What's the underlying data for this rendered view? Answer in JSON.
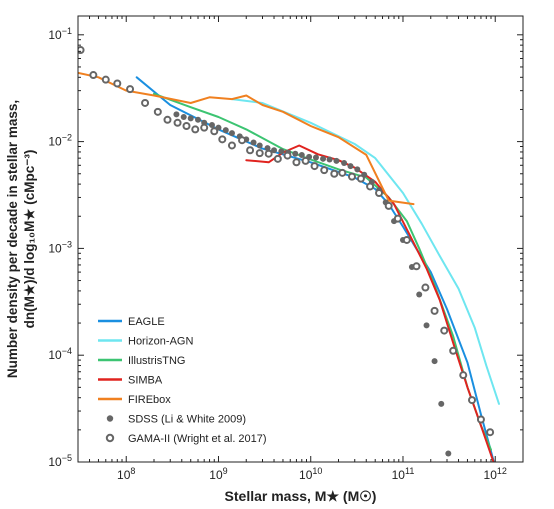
{
  "chart_data": {
    "type": "line",
    "xlabel": "Stellar mass, M★ (M☉)",
    "ylabel_line1": "Number density per decade in stellar mass,",
    "ylabel_line2": "dn(M★)/d log₁₀M★ (cMpc⁻³)",
    "xscale": "log",
    "yscale": "log",
    "xlim": [
      30000000.0,
      2000000000000.0
    ],
    "ylim": [
      1e-05,
      0.15
    ],
    "x_ticks": [
      {
        "value": 100000000.0,
        "base": "10",
        "exp": "8"
      },
      {
        "value": 1000000000.0,
        "base": "10",
        "exp": "9"
      },
      {
        "value": 10000000000.0,
        "base": "10",
        "exp": "10"
      },
      {
        "value": 100000000000.0,
        "base": "10",
        "exp": "11"
      },
      {
        "value": 1000000000000.0,
        "base": "10",
        "exp": "12"
      }
    ],
    "y_ticks": [
      {
        "value": 1e-05,
        "base": "10",
        "exp": "−5"
      },
      {
        "value": 0.0001,
        "base": "10",
        "exp": "−4"
      },
      {
        "value": 0.001,
        "base": "10",
        "exp": "−3"
      },
      {
        "value": 0.01,
        "base": "10",
        "exp": "−2"
      },
      {
        "value": 0.1,
        "base": "10",
        "exp": "−1"
      }
    ],
    "grid": false,
    "legend_position": "bottom-left",
    "series": [
      {
        "name": "EAGLE",
        "kind": "line",
        "color": "#1a8fe0",
        "x": [
          130000000.0,
          300000000.0,
          1000000000.0,
          3000000000.0,
          10000000000.0,
          30000000000.0,
          50000000000.0,
          70000000000.0,
          100000000000.0,
          150000000000.0,
          200000000000.0,
          300000000000.0,
          500000000000.0,
          700000000000.0,
          1000000000000.0
        ],
        "y": [
          0.04,
          0.022,
          0.013,
          0.0086,
          0.0064,
          0.0046,
          0.0036,
          0.0026,
          0.0016,
          0.0009,
          0.0006,
          0.00027,
          8.5e-05,
          2.8e-05,
          9e-06
        ]
      },
      {
        "name": "Horizon-AGN",
        "kind": "line",
        "color": "#6ee6f0",
        "x": [
          1400000000.0,
          3000000000.0,
          10000000000.0,
          30000000000.0,
          50000000000.0,
          100000000000.0,
          160000000000.0,
          250000000000.0,
          400000000000.0,
          600000000000.0,
          800000000000.0,
          1100000000000.0
        ],
        "y": [
          0.025,
          0.023,
          0.015,
          0.0095,
          0.007,
          0.0033,
          0.0017,
          0.00085,
          0.00042,
          0.00018,
          8e-05,
          3.5e-05
        ]
      },
      {
        "name": "IllustrisTNG",
        "kind": "line",
        "color": "#3cc472",
        "x": [
          200000000.0,
          500000000.0,
          1000000000.0,
          2000000000.0,
          5000000000.0,
          10000000000.0,
          20000000000.0,
          40000000000.0,
          70000000000.0,
          110000000000.0,
          150000000000.0,
          220000000000.0,
          350000000000.0,
          500000000000.0,
          700000000000.0,
          900000000000.0
        ],
        "y": [
          0.028,
          0.021,
          0.017,
          0.013,
          0.0085,
          0.0068,
          0.0055,
          0.0046,
          0.003,
          0.0018,
          0.001,
          0.00045,
          0.00015,
          5e-05,
          2.2e-05,
          1.3e-05
        ]
      },
      {
        "name": "SIMBA",
        "kind": "line",
        "color": "#e0231f",
        "x": [
          2000000000.0,
          3500000000.0,
          5000000000.0,
          7500000000.0,
          12000000000.0,
          20000000000.0,
          30000000000.0,
          50000000000.0,
          80000000000.0,
          120000000000.0,
          180000000000.0,
          250000000000.0,
          350000000000.0,
          500000000000.0,
          700000000000.0,
          1000000000000.0
        ],
        "y": [
          0.0067,
          0.0064,
          0.0079,
          0.0092,
          0.0076,
          0.0067,
          0.0057,
          0.0042,
          0.0026,
          0.0013,
          0.00065,
          0.00033,
          0.00013,
          5e-05,
          2.2e-05,
          9e-06
        ]
      },
      {
        "name": "FIREbox",
        "kind": "line",
        "color": "#f08020",
        "x": [
          30000000.0,
          50000000.0,
          100000000.0,
          200000000.0,
          500000000.0,
          800000000.0,
          1400000000.0,
          2000000000.0,
          3000000000.0,
          5000000000.0,
          10000000000.0,
          20000000000.0,
          40000000000.0,
          70000000000.0,
          130000000000.0
        ],
        "y": [
          0.044,
          0.04,
          0.03,
          0.027,
          0.023,
          0.026,
          0.025,
          0.027,
          0.022,
          0.019,
          0.014,
          0.011,
          0.0075,
          0.0028,
          0.0026
        ]
      },
      {
        "name": "SDSS (Li & White 2009)",
        "kind": "filled-circles",
        "color": "#666666",
        "x": [
          350000000.0,
          420000000.0,
          500000000.0,
          600000000.0,
          700000000.0,
          850000000.0,
          1000000000.0,
          1200000000.0,
          1400000000.0,
          1700000000.0,
          2000000000.0,
          2400000000.0,
          2800000000.0,
          3400000000.0,
          4000000000.0,
          4800000000.0,
          5700000000.0,
          6800000000.0,
          8000000000.0,
          9600000000.0,
          11400000000.0,
          13600000000.0,
          16000000000.0,
          19000000000.0,
          23000000000.0,
          27000000000.0,
          32000000000.0,
          38000000000.0,
          46000000000.0,
          55000000000.0,
          65000000000.0,
          80000000000.0,
          100000000000.0,
          125000000000.0,
          150000000000.0,
          180000000000.0,
          220000000000.0,
          260000000000.0,
          310000000000.0,
          400000000000.0
        ],
        "y": [
          0.018,
          0.017,
          0.0165,
          0.016,
          0.015,
          0.0143,
          0.0135,
          0.0128,
          0.012,
          0.0112,
          0.0105,
          0.0098,
          0.0092,
          0.0087,
          0.0083,
          0.0081,
          0.0079,
          0.0077,
          0.0075,
          0.0072,
          0.0071,
          0.0069,
          0.0068,
          0.0066,
          0.0063,
          0.0059,
          0.0055,
          0.0049,
          0.0042,
          0.0035,
          0.0027,
          0.0018,
          0.0012,
          0.00067,
          0.00037,
          0.00019,
          8.8e-05,
          3.5e-05,
          1.2e-05,
          5e-06
        ]
      },
      {
        "name": "GAMA-II (Wright et al. 2017)",
        "kind": "open-circles",
        "color": "#666666",
        "x": [
          32000000.0,
          44000000.0,
          60000000.0,
          80000000.0,
          110000000.0,
          160000000.0,
          220000000.0,
          280000000.0,
          360000000.0,
          450000000.0,
          560000000.0,
          700000000.0,
          900000000.0,
          1100000000.0,
          1400000000.0,
          1800000000.0,
          2200000000.0,
          2800000000.0,
          3500000000.0,
          4400000000.0,
          5600000000.0,
          7000000000.0,
          8800000000.0,
          11000000000.0,
          14000000000.0,
          18000000000.0,
          22000000000.0,
          28000000000.0,
          35000000000.0,
          44000000000.0,
          55000000000.0,
          70000000000.0,
          88000000000.0,
          110000000000.0,
          140000000000.0,
          175000000000.0,
          220000000000.0,
          280000000000.0,
          350000000000.0,
          450000000000.0,
          560000000000.0,
          700000000000.0,
          880000000000.0
        ],
        "y": [
          0.072,
          0.042,
          0.038,
          0.035,
          0.031,
          0.023,
          0.019,
          0.016,
          0.015,
          0.014,
          0.013,
          0.0135,
          0.0125,
          0.0105,
          0.0092,
          0.0103,
          0.0083,
          0.0078,
          0.0077,
          0.0069,
          0.0074,
          0.0064,
          0.0066,
          0.0059,
          0.0054,
          0.005,
          0.0051,
          0.0047,
          0.0045,
          0.0038,
          0.0033,
          0.0025,
          0.0019,
          0.0012,
          0.00068,
          0.00043,
          0.00026,
          0.00017,
          0.00011,
          6.5e-05,
          3.8e-05,
          2.5e-05,
          1.9e-05
        ]
      }
    ]
  }
}
